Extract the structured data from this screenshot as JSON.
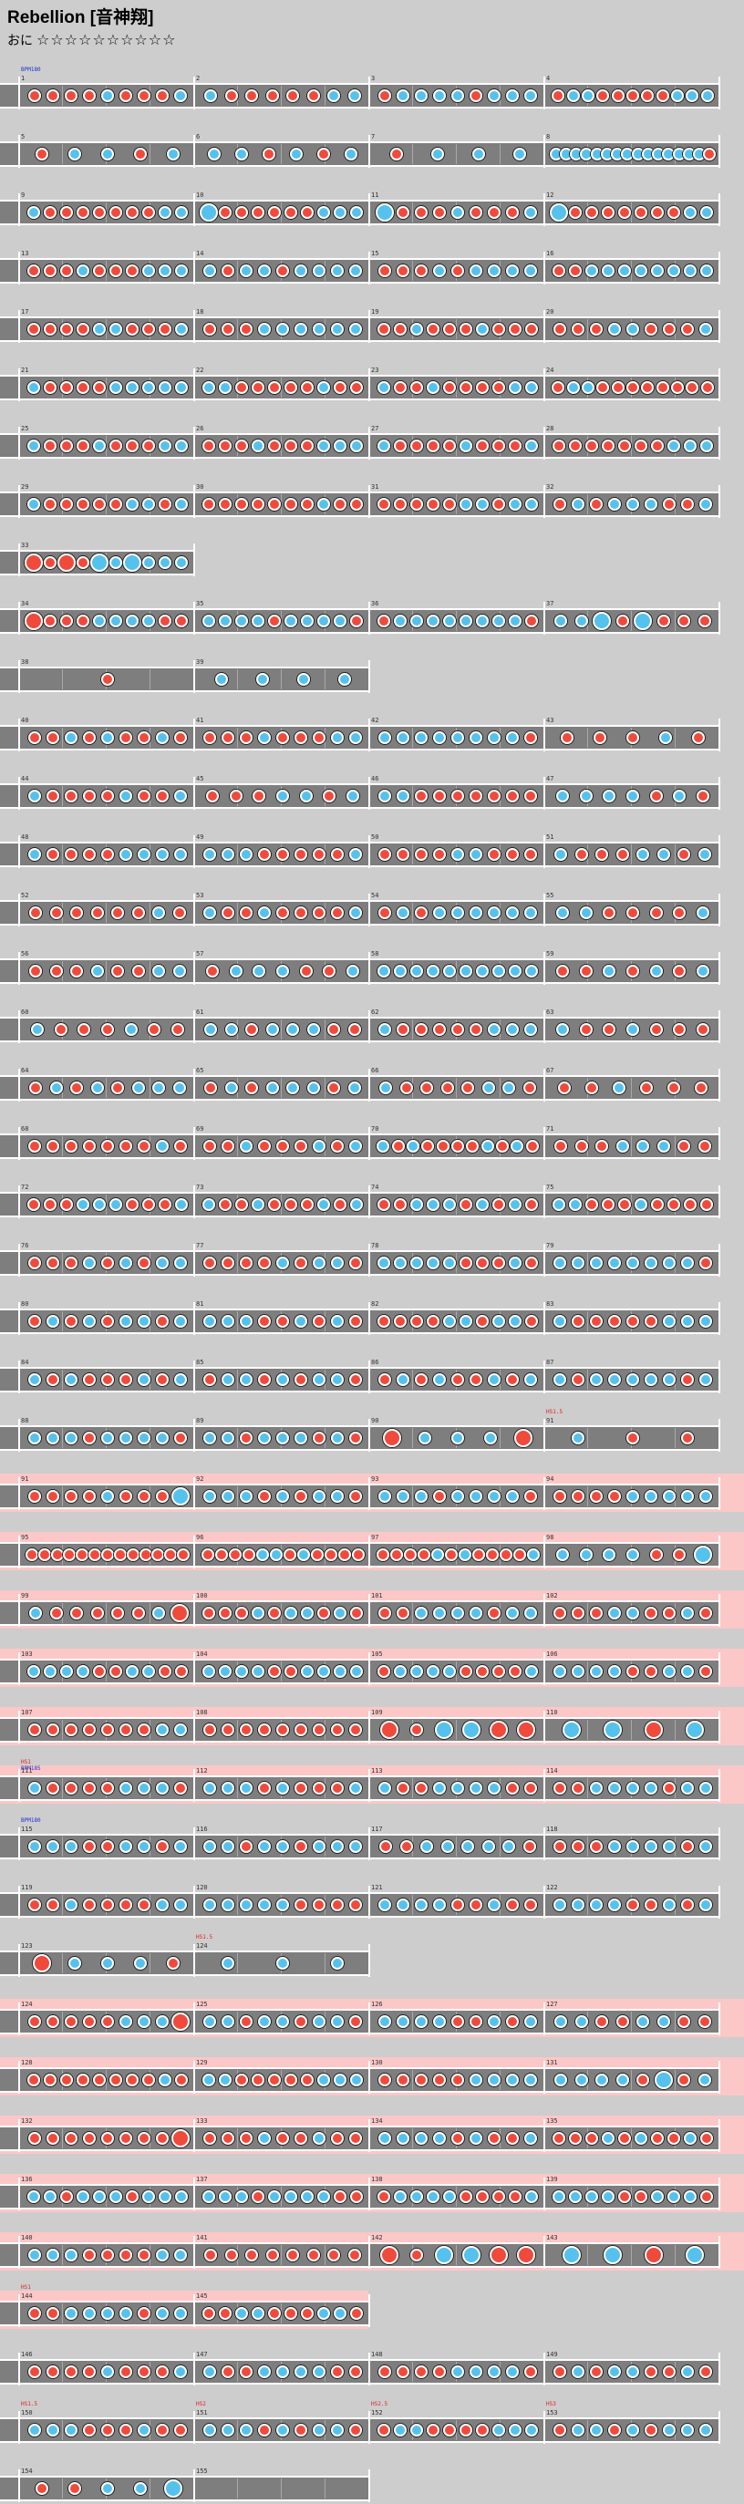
{
  "song": {
    "title": "Rebellion [音神翔]",
    "difficulty_label": "おに",
    "stars": "☆☆☆☆☆☆☆☆☆☆"
  },
  "colors": {
    "background": "#cdcdcd",
    "track": "#7e7e7e",
    "gogo": "#fcc7c7",
    "don": "#f04a3c",
    "ka": "#55c2ee"
  },
  "rows": [
    {
      "m": [
        "1",
        "2",
        "3",
        "4"
      ],
      "n": [
        "ddddkdddk",
        "kdddddkk",
        "dkkkkdkkk",
        "dkkdddddkkk"
      ],
      "evt": [
        {
          "label": "BPM180",
          "mi": 0,
          "color": "blue"
        }
      ]
    },
    {
      "m": [
        "5",
        "6",
        "7",
        "8"
      ],
      "n": [
        "dkkdk",
        "kkdkdk",
        "dkkk",
        "kkkkkkkkkkkkkkkd"
      ]
    },
    {
      "m": [
        "9",
        "10",
        "11",
        "12"
      ],
      "n": [
        "kdddddddkk",
        "Kddddddkkk",
        "Kdddkdddk",
        "Kdddddddkk"
      ]
    },
    {
      "m": [
        "13",
        "14",
        "15",
        "16"
      ],
      "n": [
        "dddkdddkkk",
        "kdkkdkkkk",
        "dddkdkkkk",
        "ddkkkkkkkk"
      ]
    },
    {
      "m": [
        "17",
        "18",
        "19",
        "20"
      ],
      "n": [
        "ddddkkdddk",
        "dddkkkkkk",
        "ddkdddkddd",
        "dddkkdddk"
      ]
    },
    {
      "m": [
        "21",
        "22",
        "23",
        "24"
      ],
      "n": [
        "kddddkkkkk",
        "kkdddddkdd",
        "kddkddddkk",
        "dkkdddddddd"
      ]
    },
    {
      "m": [
        "25",
        "26",
        "27",
        "28"
      ],
      "n": [
        "kdddkdddkk",
        "dddkdddkkk",
        "kddddkdddk",
        "dddddddkkk"
      ]
    },
    {
      "m": [
        "29",
        "30",
        "31",
        "32"
      ],
      "n": [
        "kdddddkkdk",
        "dddddddkdd",
        "dddddkkdkk",
        "dkdkkkddk"
      ]
    },
    {
      "m": [
        "33"
      ],
      "n": [
        "DdDdKkKkkk"
      ],
      "short": true
    },
    {
      "m": [
        "34",
        "35",
        "36",
        "37"
      ],
      "n": [
        "Ddddkkkkdd",
        "kkkkdkkkkd",
        "dkkkkkkkkd",
        "kkKdKddd"
      ]
    },
    {
      "m": [
        "38",
        "39"
      ],
      "n": [
        "d",
        "kkkk"
      ],
      "short": true
    },
    {
      "m": [
        "40",
        "41",
        "42",
        "43"
      ],
      "n": [
        "ddkdkddkd",
        "dddkdddkk",
        "kkkkkkkkd",
        "dddkd"
      ]
    },
    {
      "m": [
        "44",
        "45",
        "46",
        "47"
      ],
      "n": [
        "kddddkddk",
        "dddkkdk",
        "kkddddddd",
        "kkkkdkd"
      ]
    },
    {
      "m": [
        "48",
        "49",
        "50",
        "51"
      ],
      "n": [
        "kddddkkkk",
        "kkkdddddk",
        "ddddkkddd",
        "kdddkkdk"
      ]
    },
    {
      "m": [
        "52",
        "53",
        "54",
        "55"
      ],
      "n": [
        "ddddddkd",
        "kddkddddk",
        "dkdkkkkkk",
        "kkddddk"
      ]
    },
    {
      "m": [
        "56",
        "57",
        "58",
        "59"
      ],
      "n": [
        "dddkddkk",
        "dkkkddk",
        "kkkkkkkkkk",
        "ddkdkdk"
      ]
    },
    {
      "m": [
        "60",
        "61",
        "62",
        "63"
      ],
      "n": [
        "kdddkdd",
        "kkdkkkdd",
        "kdddddkkk",
        "kddkddd"
      ]
    },
    {
      "m": [
        "64",
        "65",
        "66",
        "67"
      ],
      "n": [
        "dkdkdkkk",
        "dkdkkkdk",
        "kddddkkd",
        "ddkddd"
      ]
    },
    {
      "m": [
        "68",
        "69",
        "70",
        "71"
      ],
      "n": [
        "dddddddkd",
        "ddkdddkdk",
        "kdkddddkdkd",
        "dddkkkdd"
      ]
    },
    {
      "m": [
        "72",
        "73",
        "74",
        "75"
      ],
      "n": [
        "dddkkkdddk",
        "kddkdddkdk",
        "ddkkkdkdkd",
        "kkdddkdddd"
      ]
    },
    {
      "m": [
        "76",
        "77",
        "78",
        "79"
      ],
      "n": [
        "dddkdkdkk",
        "ddddkdkkd",
        "kkkkkdddkd",
        "kkkkkkkkd"
      ]
    },
    {
      "m": [
        "80",
        "81",
        "82",
        "83"
      ],
      "n": [
        "dkdkdkkdk",
        "kkkddkdkd",
        "ddddkkdkkd",
        "kdddddkkk"
      ]
    },
    {
      "m": [
        "84",
        "85",
        "86",
        "87"
      ],
      "n": [
        "kdkdddkdk",
        "dkkdkdkkd",
        "dkdkddkdk",
        "kdkkkkkdk"
      ]
    },
    {
      "m": [
        "88",
        "89",
        "90",
        "91"
      ],
      "n": [
        "kkkdkkkkd",
        "kkdkkkdkd",
        "DkkkD",
        "kdd"
      ],
      "short": true,
      "evt": [
        {
          "label": "HS1.5",
          "mi": 3,
          "color": "red"
        }
      ]
    },
    {
      "m": [
        "91",
        "92",
        "93",
        "94"
      ],
      "n": [
        "ddddkdddK",
        "kkkdkdkkd",
        "kkkdkkkkd",
        "ddddkkkkk"
      ],
      "gogo": true
    },
    {
      "m": [
        "95",
        "96",
        "97",
        "98"
      ],
      "n": [
        "ddddddddddddd",
        "ddddkkdkdddd",
        "ddddkdkddddk",
        "kkkkddK"
      ],
      "gogo": true
    },
    {
      "m": [
        "99",
        "100",
        "101",
        "102"
      ],
      "n": [
        "kdddddkD",
        "dddkdkkdkd",
        "ddkkkkdkk",
        "dddkkddkd"
      ],
      "gogo": true
    },
    {
      "m": [
        "103",
        "104",
        "105",
        "106"
      ],
      "n": [
        "kkkkddkkdd",
        "kkkkddkkkk",
        "dkkkkddddk",
        "kkkkddkkd"
      ],
      "gogo": true
    },
    {
      "m": [
        "107",
        "108",
        "109",
        "110"
      ],
      "n": [
        "dddddddkk",
        "ddddddddd",
        "DdKKDD",
        "KKDK"
      ],
      "gogo": true
    },
    {
      "m": [
        "111",
        "112",
        "113",
        "114"
      ],
      "n": [
        "kddddkkkd",
        "kkkdkdddk",
        "kddkkkkdd",
        "ddkkkkdkk"
      ],
      "gogo": true,
      "evt": [
        {
          "label": "HS1",
          "mi": 0,
          "color": "red"
        },
        {
          "label": "BPM185",
          "mi": 0,
          "color": "blue"
        }
      ]
    },
    {
      "m": [
        "115",
        "116",
        "117",
        "118"
      ],
      "n": [
        "kkkddkkdk",
        "kkdkkdkkk",
        "ddkkkkkd",
        "dddkkkkdk"
      ],
      "evt": [
        {
          "label": "BPM180",
          "mi": 0,
          "color": "blue"
        }
      ]
    },
    {
      "m": [
        "119",
        "120",
        "121",
        "122"
      ],
      "n": [
        "ddkddddkk",
        "kkkkkdddd",
        "kkkkddkdd",
        "kkkkddkdk"
      ]
    },
    {
      "m": [
        "123",
        "124"
      ],
      "n": [
        "Dkkkd",
        "kkk"
      ],
      "short": true,
      "evt": [
        {
          "label": "HS1.5",
          "mi": 1,
          "color": "red"
        }
      ]
    },
    {
      "m": [
        "124",
        "125",
        "126",
        "127"
      ],
      "n": [
        "dddddkkkD",
        "kkdkkdkkd",
        "kkkkddkdk",
        "kkddkkdd"
      ],
      "gogo": true
    },
    {
      "m": [
        "128",
        "129",
        "130",
        "131"
      ],
      "n": [
        "ddddddddkd",
        "kkdddddkkk",
        "dddddkkkk",
        "kkkkdKdk"
      ],
      "gogo": true
    },
    {
      "m": [
        "132",
        "133",
        "134",
        "135"
      ],
      "n": [
        "ddddddddD",
        "dddkddkdd",
        "kkkkdkddk",
        "dddkdkddkd"
      ],
      "gogo": true
    },
    {
      "m": [
        "136",
        "137",
        "138",
        "139"
      ],
      "n": [
        "kkdkkkdkkk",
        "kkkdkkkkdd",
        "dkkkkddddk",
        "kkkkddkkkd"
      ],
      "gogo": true
    },
    {
      "m": [
        "140",
        "141",
        "142",
        "143"
      ],
      "n": [
        "kkkddddkk",
        "dddddddd",
        "DdKKDD",
        "KKDK"
      ],
      "gogo": true
    },
    {
      "m": [
        "144",
        "145"
      ],
      "n": [
        "ddkkkkdkk",
        "ddkkdddkkd"
      ],
      "gogo": true,
      "short": true,
      "evt": [
        {
          "label": "HS1",
          "mi": 0,
          "color": "red"
        }
      ]
    },
    {
      "m": [
        "146",
        "147",
        "148",
        "149"
      ],
      "n": [
        "ddddkdddk",
        "kddkkkkdd",
        "ddddkkkkd",
        "dkdkkddkd"
      ]
    },
    {
      "m": [
        "150",
        "151",
        "152",
        "153"
      ],
      "n": [
        "kkkdddkdd",
        "kkkdkdkkd",
        "dkkddddkkk",
        "dkkdkdkkk"
      ],
      "evt": [
        {
          "label": "HS1.5",
          "mi": 0,
          "color": "red"
        },
        {
          "label": "HS2",
          "mi": 1,
          "color": "red"
        },
        {
          "label": "HS2.5",
          "mi": 2,
          "color": "red"
        },
        {
          "label": "HS3",
          "mi": 3,
          "color": "red"
        }
      ]
    },
    {
      "m": [
        "154",
        "155"
      ],
      "n": [
        "ddkkK",
        ""
      ],
      "short": true
    }
  ]
}
